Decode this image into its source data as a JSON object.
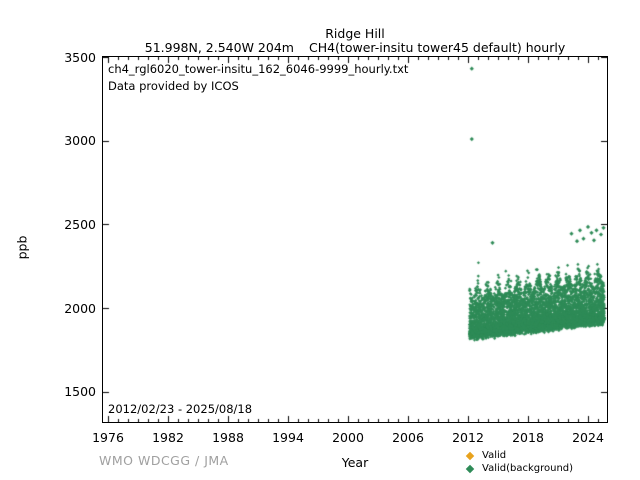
{
  "header": {
    "title": "Ridge Hill",
    "subtitle_left": "51.998N, 2.540W 204m",
    "subtitle_right": "CH4(tower-insitu tower45 default) hourly"
  },
  "footer": {
    "credit": "WMO WDCGG / JMA"
  },
  "chart_data": {
    "type": "scatter",
    "title": "Ridge Hill",
    "station": "51.998N, 2.540W 204m",
    "parameter": "CH4(tower-insitu tower45 default) hourly",
    "xlabel": "Year",
    "ylabel": "ppb",
    "xlim": [
      1975.5,
      2025.9
    ],
    "ylim": [
      1320,
      3500
    ],
    "x_major_ticks": [
      1976,
      1982,
      1988,
      1994,
      2000,
      2006,
      2012,
      2018,
      2024
    ],
    "x_minor_tick_step_years": 1,
    "y_major_ticks": [
      1500,
      2000,
      2500,
      3000,
      3500
    ],
    "grid": false,
    "legend_position": "bottom-right-outside",
    "annotations": {
      "filename": "ch4_rgl6020_tower-insitu_162_6046-9999_hourly.txt",
      "provider": "Data provided by ICOS",
      "date_range": "2012/02/23 - 2025/08/18"
    },
    "series": [
      {
        "name": "Valid",
        "color": "#e8a21d",
        "marker": "diamond",
        "points": []
      },
      {
        "name": "Valid(background)",
        "color": "#2e8b57",
        "marker": "diamond",
        "coverage": {
          "start_date": "2012/02/23",
          "end_date": "2025/08/18",
          "t_start": 2012.15,
          "t_end": 2025.63
        },
        "value_range_ppb": [
          1820,
          3430
        ],
        "density_model": {
          "seed": 20120223,
          "n_points": 6800,
          "baseline_ppb_start": 1848,
          "baseline_ppb_end": 1942,
          "band_height_ppb": 300,
          "dip_depth_ppb": 48,
          "winter_amplitude": 0.45,
          "spike_prob": 0.018,
          "spike_extra_ppb": 170
        },
        "outliers": [
          [
            2012.38,
            3430
          ],
          [
            2012.38,
            3010
          ],
          [
            2014.45,
            2390
          ],
          [
            2022.35,
            2445
          ],
          [
            2022.9,
            2400
          ],
          [
            2023.2,
            2465
          ],
          [
            2023.55,
            2415
          ],
          [
            2024.0,
            2485
          ],
          [
            2024.35,
            2450
          ],
          [
            2024.6,
            2405
          ],
          [
            2024.85,
            2465
          ],
          [
            2025.3,
            2440
          ],
          [
            2025.55,
            2480
          ]
        ]
      }
    ]
  }
}
